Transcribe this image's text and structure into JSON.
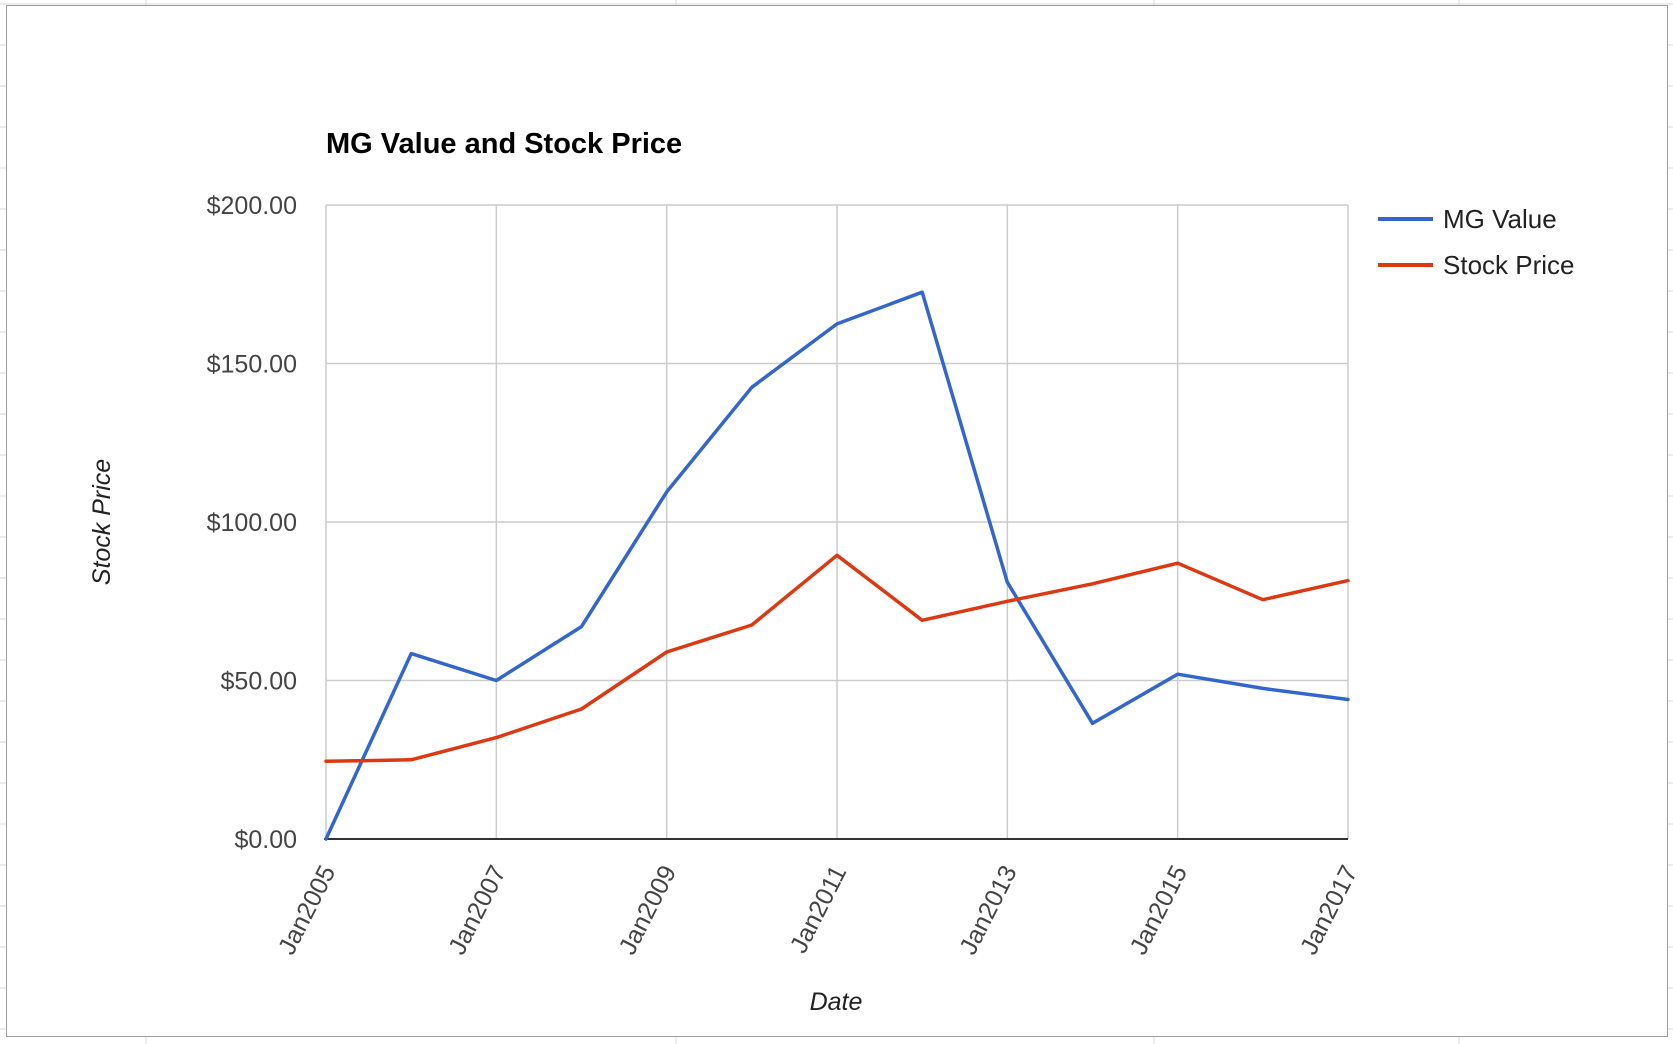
{
  "chart_data": {
    "type": "line",
    "title": "MG Value and Stock Price",
    "xlabel": "Date",
    "ylabel": "Stock Price",
    "x": [
      "Jan2005",
      "Jan2006",
      "Jan2007",
      "Jan2008",
      "Jan2009",
      "Jan2010",
      "Jan2011",
      "Jan2012",
      "Jan2013",
      "Jan2014",
      "Jan2015",
      "Jan2016",
      "Jan2017"
    ],
    "x_tick_labels": [
      "Jan2005",
      "Jan2007",
      "Jan2009",
      "Jan2011",
      "Jan2013",
      "Jan2015",
      "Jan2017"
    ],
    "y_tick_labels": [
      "$0.00",
      "$50.00",
      "$100.00",
      "$150.00",
      "$200.00"
    ],
    "ylim": [
      0,
      200
    ],
    "grid": true,
    "legend_position": "right",
    "series": [
      {
        "name": "MG Value",
        "color": "#3366cc",
        "values": [
          0,
          58.5,
          50,
          67,
          109.5,
          142.5,
          162.5,
          172.5,
          81,
          36.5,
          52,
          47.5,
          44
        ]
      },
      {
        "name": "Stock Price",
        "color": "#dc3912",
        "values": [
          24.5,
          25,
          32,
          41,
          59,
          67.5,
          89.5,
          69,
          75,
          80.5,
          87,
          75.5,
          81.5
        ]
      }
    ]
  }
}
